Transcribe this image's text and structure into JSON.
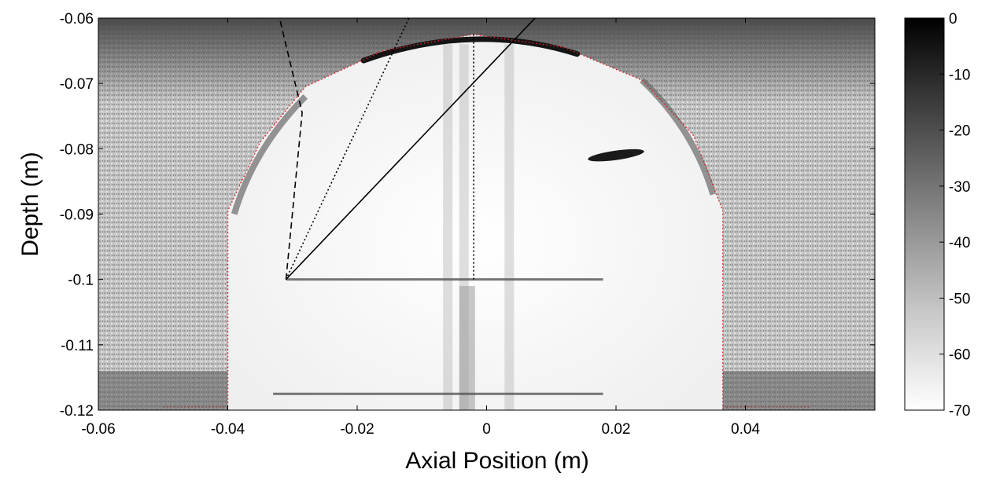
{
  "chart_data": {
    "type": "heatmap",
    "title": "",
    "xlabel": "Axial Position (m)",
    "ylabel": "Depth (m)",
    "xlim": [
      -0.06,
      0.06
    ],
    "ylim": [
      -0.12,
      -0.06
    ],
    "y_direction": "depth increases downward (-0.06 at top, -0.12 at bottom)",
    "x_ticks": [
      "-0.06",
      "-0.04",
      "-0.02",
      "0",
      "0.02",
      "0.04"
    ],
    "x_tick_values": [
      -0.06,
      -0.04,
      -0.02,
      0,
      0.02,
      0.04
    ],
    "y_ticks": [
      "-0.06",
      "-0.07",
      "-0.08",
      "-0.09",
      "-0.1",
      "-0.11",
      "-0.12"
    ],
    "y_tick_values": [
      -0.06,
      -0.07,
      -0.08,
      -0.09,
      -0.1,
      -0.11,
      -0.12
    ],
    "grid": false,
    "colormap": "grayscale (black = 0, white = -70)",
    "colorbar": {
      "min": -70,
      "max": 0,
      "ticks": [
        "0",
        "-10",
        "-20",
        "-30",
        "-40",
        "-50",
        "-60",
        "-70"
      ],
      "tick_values": [
        0,
        -10,
        -20,
        -30,
        -40,
        -50,
        -60,
        -70
      ],
      "placement": "right"
    },
    "colors": {
      "background": "#ffffff",
      "outer_region": "#bdbdbd",
      "inner_region": "#f4f4f4",
      "boundary_dotted": "#e02020",
      "ray_lines": "#000000"
    },
    "features": {
      "skull_boundary": {
        "description": "dome-shaped boundary (red dotted)",
        "points": [
          [
            -0.04,
            -0.12
          ],
          [
            -0.04,
            -0.0895
          ],
          [
            -0.035,
            -0.079
          ],
          [
            -0.028,
            -0.0705
          ],
          [
            -0.016,
            -0.065
          ],
          [
            -0.002,
            -0.0625
          ],
          [
            0.012,
            -0.0645
          ],
          [
            0.024,
            -0.0695
          ],
          [
            0.032,
            -0.078
          ],
          [
            0.0365,
            -0.0895
          ],
          [
            0.0365,
            -0.12
          ]
        ]
      },
      "focus_point": [
        -0.031,
        -0.1
      ],
      "ray_paths": [
        {
          "style": "dashed",
          "points": [
            [
              -0.031,
              -0.1
            ],
            [
              -0.0285,
              -0.0745
            ],
            [
              -0.032,
              -0.06
            ]
          ]
        },
        {
          "style": "dotted",
          "points": [
            [
              -0.031,
              -0.1
            ],
            [
              -0.012,
              -0.06
            ]
          ]
        },
        {
          "style": "solid",
          "points": [
            [
              -0.031,
              -0.1
            ],
            [
              0.0075,
              -0.06
            ]
          ]
        },
        {
          "style": "dotted",
          "points": [
            [
              -0.002,
              -0.1
            ],
            [
              -0.002,
              -0.0625
            ]
          ]
        }
      ],
      "reflectors": [
        {
          "from": [
            -0.031,
            -0.1
          ],
          "to": [
            0.018,
            -0.1
          ]
        },
        {
          "from": [
            -0.033,
            -0.1175
          ],
          "to": [
            0.018,
            -0.1175
          ]
        }
      ],
      "dark_spot": [
        0.02,
        -0.081
      ]
    }
  }
}
